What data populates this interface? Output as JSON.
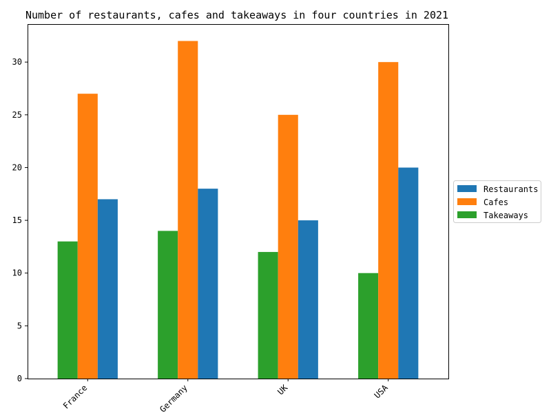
{
  "chart_data": {
    "type": "bar",
    "title": "Number of restaurants, cafes and takeaways in four countries in 2021",
    "xlabel": "",
    "ylabel": "",
    "categories": [
      "France",
      "Germany",
      "UK",
      "USA"
    ],
    "series": [
      {
        "name": "Takeaways",
        "color": "#2ca02c",
        "values": [
          13,
          14,
          12,
          10
        ]
      },
      {
        "name": "Cafes",
        "color": "#ff7f0e",
        "values": [
          27,
          32,
          25,
          30
        ]
      },
      {
        "name": "Restaurants",
        "color": "#1f77b4",
        "values": [
          17,
          18,
          15,
          20
        ]
      }
    ],
    "legend_order": [
      "Restaurants",
      "Cafes",
      "Takeaways"
    ],
    "ylim": [
      0,
      33.6
    ],
    "yticks": [
      0,
      5,
      10,
      15,
      20,
      25,
      30
    ],
    "xtick_rotation": -45,
    "grid": false,
    "legend_position": "center-right outside"
  }
}
